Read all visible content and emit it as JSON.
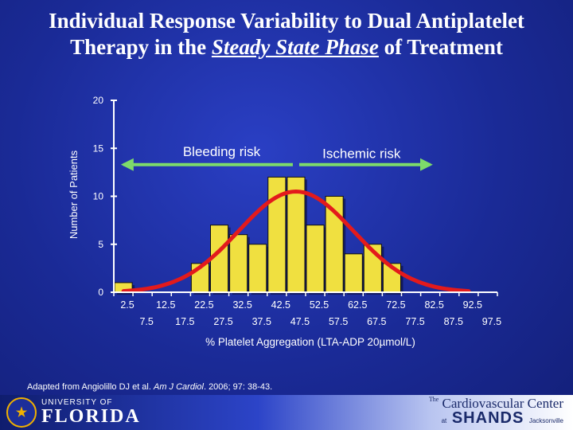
{
  "title": {
    "line1": "Individual Response Variability to Dual Antiplatelet",
    "line2_pre": "Therapy in the ",
    "line2_emph": "Steady State Phase",
    "line2_post": " of Treatment"
  },
  "chart_data": {
    "type": "bar",
    "ylabel": "Number of Patients",
    "xlabel": "% Platelet Aggregation (LTA-ADP 20µmol/L)",
    "ylim": [
      0,
      20
    ],
    "yticks": [
      "0",
      "5",
      "10",
      "15",
      "20"
    ],
    "categories": [
      "2.5",
      "7.5",
      "12.5",
      "17.5",
      "22.5",
      "27.5",
      "32.5",
      "37.5",
      "42.5",
      "47.5",
      "52.5",
      "57.5",
      "62.5",
      "67.5",
      "72.5",
      "77.5",
      "82.5",
      "87.5",
      "92.5",
      "97.5"
    ],
    "values": [
      1,
      0,
      0,
      0,
      3,
      7,
      6,
      5,
      12,
      12,
      7,
      10,
      4,
      5,
      3,
      0,
      0,
      0,
      0,
      0
    ],
    "fit_curve": {
      "type": "normal",
      "mean": 47.5,
      "sd": 15,
      "peak": 10.5,
      "x_start": 2.5,
      "x_end": 92.5
    },
    "annotations": [
      {
        "text": "Bleeding risk",
        "arrow": "left",
        "x_from": 2.5,
        "x_to": 47.5,
        "y": 13.3,
        "label_y": 14.7
      },
      {
        "text": "Ischemic risk",
        "arrow": "right",
        "x_from": 47.5,
        "x_to": 82.5,
        "y": 13.3,
        "label_y": 14.5
      }
    ],
    "colors": {
      "bar": "#f0e040",
      "bar_stroke": "#101010",
      "bar_shadow": "#0a0a30",
      "curve": "#e31a1c",
      "arrow": "#7ddb6a",
      "axis": "#ffffff",
      "text": "#ffffff"
    }
  },
  "footnote": {
    "pre": "Adapted from Angiolillo DJ et al. ",
    "journal": "Am J Cardiol",
    "post": ". 2006; 97: 38-43."
  },
  "footer": {
    "uf_top": "UNIVERSITY OF",
    "uf_bottom": "FLORIDA",
    "uf_seal": "★",
    "cc_the": "The",
    "cc_name": "Cardiovascular Center",
    "shands_at": "at",
    "shands_name": "SHANDS",
    "shands_city": "Jacksonville"
  }
}
